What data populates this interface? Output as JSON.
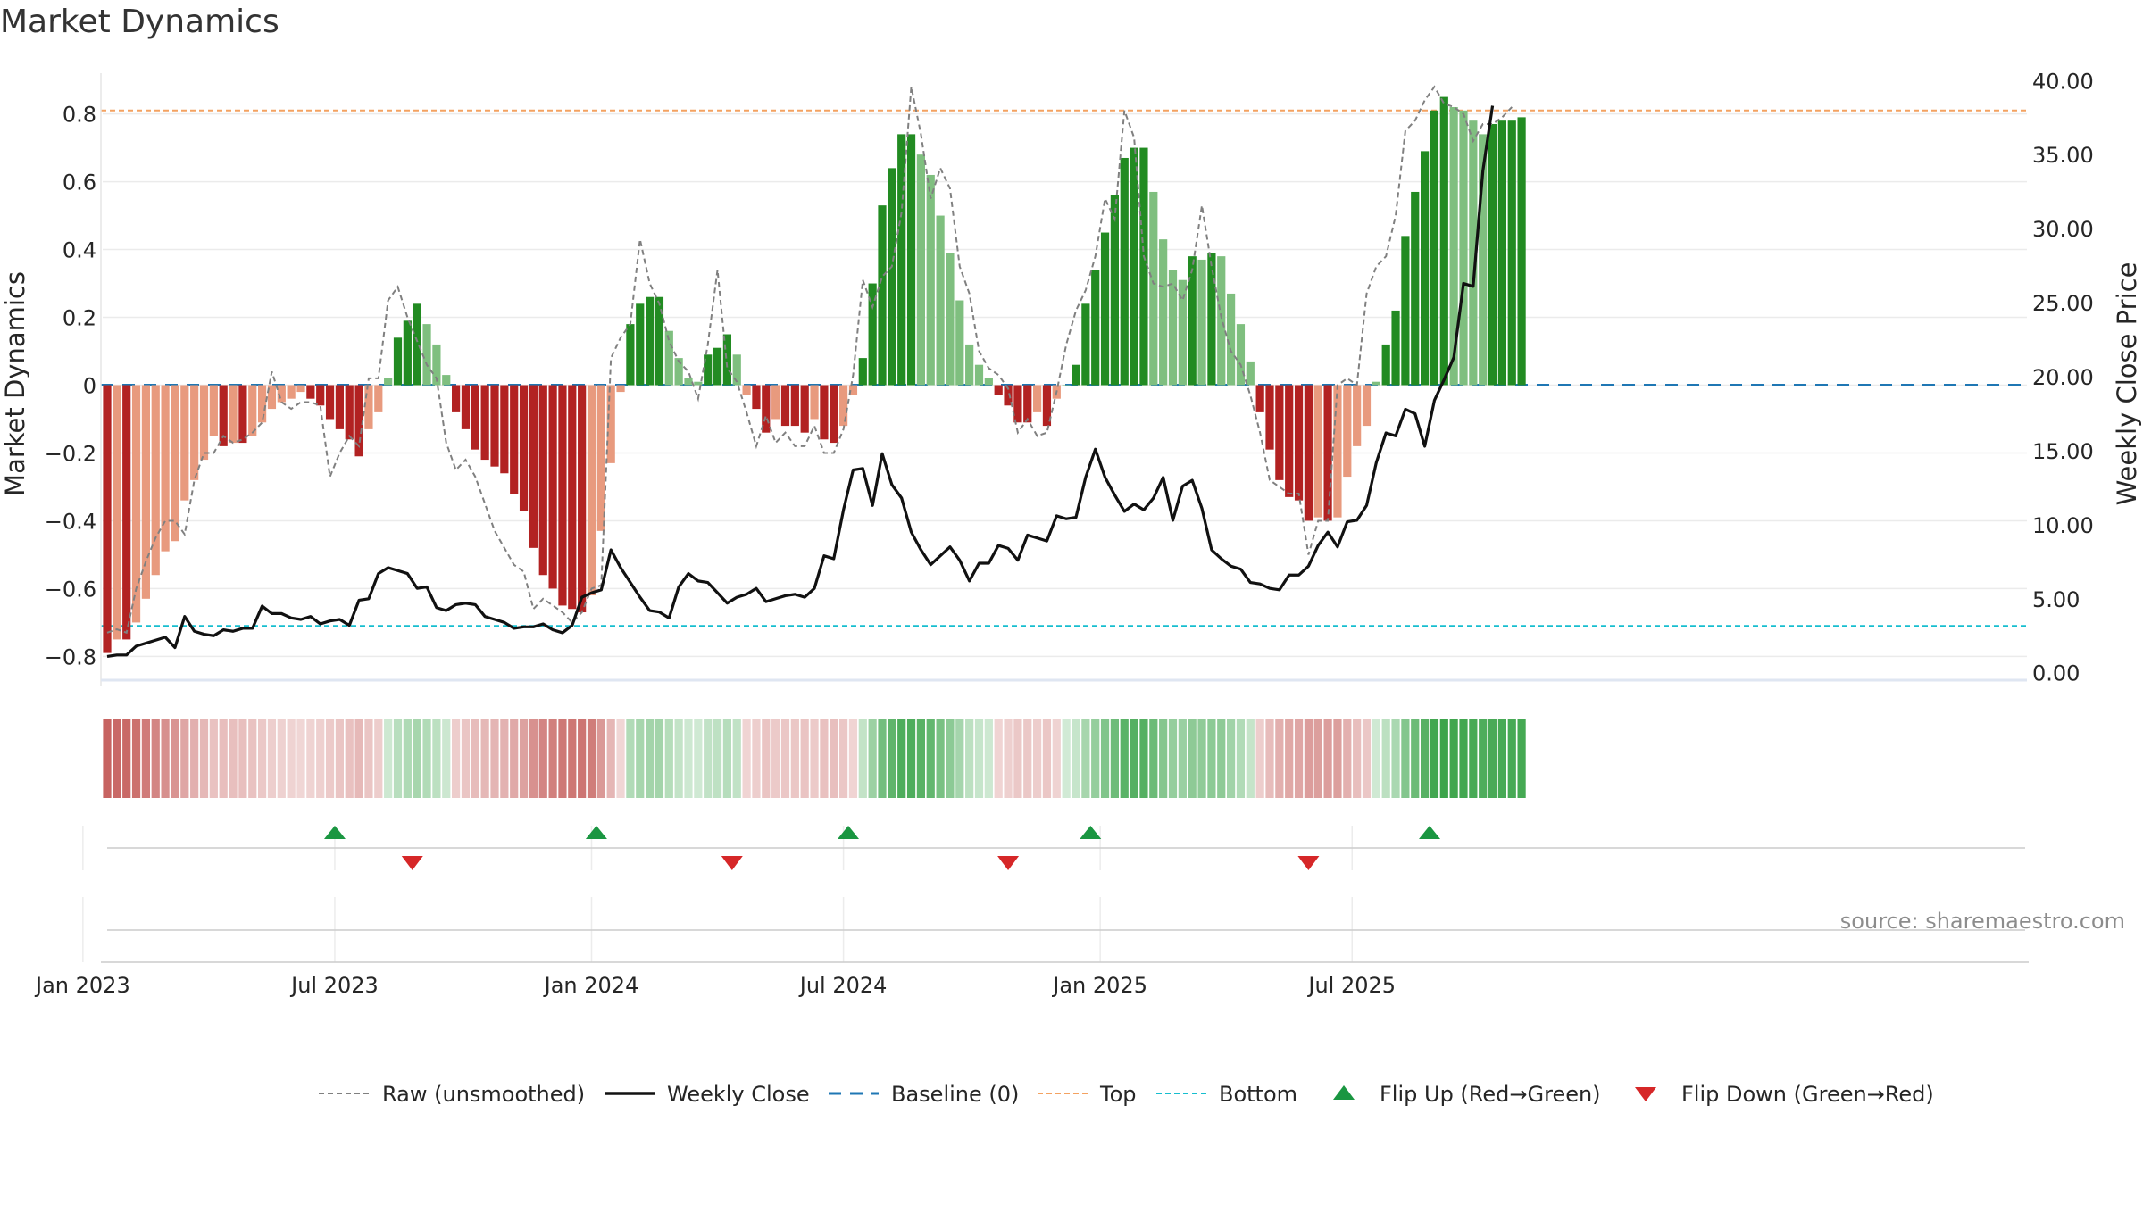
{
  "chart_data": {
    "type": "bar",
    "title": "Market Dynamics",
    "ylabel_left": "Market Dynamics",
    "ylabel_right": "Weekly Close Price",
    "ylim_left": [
      -0.87,
      0.92
    ],
    "ylim_right": [
      -0.5,
      40.5
    ],
    "yticks_left": [
      "0.8",
      "0.6",
      "0.4",
      "0.2",
      "0",
      "−0.2",
      "−0.4",
      "−0.6",
      "−0.8"
    ],
    "yticks_left_values": [
      0.8,
      0.6,
      0.4,
      0.2,
      0,
      -0.2,
      -0.4,
      -0.6,
      -0.8
    ],
    "yticks_right": [
      "40.00",
      "35.00",
      "30.00",
      "25.00",
      "20.00",
      "15.00",
      "10.00",
      "5.00",
      "0.00"
    ],
    "yticks_right_values": [
      40,
      35,
      30,
      25,
      20,
      15,
      10,
      5,
      0
    ],
    "xticks": [
      "Jan 2023",
      "Jul 2023",
      "Jan 2024",
      "Jul 2024",
      "Jan 2025",
      "Jul 2025"
    ],
    "xticks_week_index": [
      -2.5,
      23.5,
      50,
      76,
      102.5,
      128.5
    ],
    "top_level": 0.81,
    "bottom_level": -0.71,
    "baseline": 0,
    "dynamics": [
      -0.79,
      -0.75,
      -0.75,
      -0.7,
      -0.63,
      -0.56,
      -0.49,
      -0.46,
      -0.34,
      -0.28,
      -0.22,
      -0.15,
      -0.18,
      -0.17,
      -0.17,
      -0.15,
      -0.11,
      -0.07,
      -0.05,
      -0.04,
      -0.02,
      -0.04,
      -0.06,
      -0.1,
      -0.13,
      -0.16,
      -0.21,
      -0.13,
      -0.08,
      0.02,
      0.14,
      0.19,
      0.24,
      0.18,
      0.12,
      0.03,
      -0.08,
      -0.13,
      -0.19,
      -0.22,
      -0.24,
      -0.26,
      -0.32,
      -0.37,
      -0.48,
      -0.56,
      -0.6,
      -0.65,
      -0.66,
      -0.67,
      -0.62,
      -0.43,
      -0.23,
      -0.02,
      0.18,
      0.24,
      0.26,
      0.26,
      0.16,
      0.08,
      0.02,
      0.01,
      0.09,
      0.11,
      0.15,
      0.09,
      -0.03,
      -0.07,
      -0.14,
      -0.1,
      -0.12,
      -0.12,
      -0.14,
      -0.1,
      -0.16,
      -0.17,
      -0.12,
      -0.03,
      0.08,
      0.3,
      0.53,
      0.64,
      0.74,
      0.74,
      0.68,
      0.62,
      0.5,
      0.39,
      0.25,
      0.12,
      0.06,
      0.02,
      -0.03,
      -0.06,
      -0.11,
      -0.11,
      -0.08,
      -0.12,
      -0.04,
      0.0,
      0.06,
      0.24,
      0.34,
      0.45,
      0.56,
      0.67,
      0.7,
      0.7,
      0.57,
      0.43,
      0.34,
      0.31,
      0.38,
      0.37,
      0.39,
      0.38,
      0.27,
      0.18,
      0.07,
      -0.08,
      -0.19,
      -0.28,
      -0.33,
      -0.34,
      -0.4,
      -0.39,
      -0.4,
      -0.39,
      -0.27,
      -0.18,
      -0.12,
      0.01,
      0.12,
      0.22,
      0.44,
      0.57,
      0.69,
      0.81,
      0.85,
      0.82,
      0.81,
      0.78,
      0.74,
      0.77,
      0.78,
      0.78,
      0.79
    ],
    "raw": [
      -0.73,
      -0.72,
      -0.73,
      -0.6,
      -0.52,
      -0.45,
      -0.4,
      -0.4,
      -0.44,
      -0.28,
      -0.2,
      -0.2,
      -0.15,
      -0.17,
      -0.16,
      -0.14,
      -0.11,
      0.04,
      -0.05,
      -0.07,
      -0.05,
      -0.05,
      -0.06,
      -0.27,
      -0.2,
      -0.15,
      -0.18,
      0.02,
      0.02,
      0.25,
      0.29,
      0.2,
      0.13,
      0.06,
      0.02,
      -0.17,
      -0.25,
      -0.22,
      -0.27,
      -0.35,
      -0.43,
      -0.48,
      -0.53,
      -0.55,
      -0.66,
      -0.63,
      -0.65,
      -0.67,
      -0.7,
      -0.67,
      -0.6,
      -0.59,
      0.08,
      0.14,
      0.18,
      0.43,
      0.3,
      0.24,
      0.13,
      0.07,
      0.04,
      -0.04,
      0.12,
      0.34,
      0.05,
      0.01,
      -0.08,
      -0.18,
      -0.09,
      -0.17,
      -0.14,
      -0.18,
      -0.18,
      -0.12,
      -0.2,
      -0.2,
      -0.13,
      0.03,
      0.31,
      0.23,
      0.32,
      0.35,
      0.51,
      0.88,
      0.74,
      0.55,
      0.64,
      0.58,
      0.35,
      0.27,
      0.1,
      0.05,
      0.03,
      -0.01,
      -0.14,
      -0.1,
      -0.15,
      -0.14,
      -0.02,
      0.12,
      0.22,
      0.28,
      0.38,
      0.55,
      0.49,
      0.81,
      0.73,
      0.38,
      0.3,
      0.29,
      0.3,
      0.25,
      0.34,
      0.53,
      0.35,
      0.2,
      0.1,
      0.06,
      -0.03,
      -0.14,
      -0.28,
      -0.3,
      -0.32,
      -0.32,
      -0.5,
      -0.4,
      -0.4,
      0.0,
      0.02,
      0.0,
      0.27,
      0.35,
      0.38,
      0.5,
      0.75,
      0.78,
      0.84,
      0.88,
      0.83,
      0.82,
      0.8,
      0.72,
      0.77,
      0.77,
      0.79,
      0.82
    ],
    "close": [
      1.1,
      1.2,
      1.2,
      1.8,
      2.0,
      2.2,
      2.4,
      1.7,
      3.8,
      2.8,
      2.6,
      2.5,
      2.9,
      2.8,
      3.0,
      3.0,
      4.5,
      4.0,
      4.0,
      3.7,
      3.6,
      3.8,
      3.3,
      3.5,
      3.6,
      3.2,
      4.9,
      5.0,
      6.7,
      7.1,
      6.9,
      6.7,
      5.7,
      5.8,
      4.4,
      4.2,
      4.6,
      4.7,
      4.6,
      3.8,
      3.6,
      3.4,
      3.0,
      3.1,
      3.1,
      3.3,
      2.9,
      2.7,
      3.2,
      5.1,
      5.4,
      5.6,
      8.3,
      7.1,
      6.1,
      5.1,
      4.2,
      4.1,
      3.7,
      5.8,
      6.7,
      6.2,
      6.1,
      5.4,
      4.7,
      5.1,
      5.3,
      5.7,
      4.8,
      5.0,
      5.2,
      5.3,
      5.1,
      5.7,
      7.9,
      7.7,
      11.0,
      13.7,
      13.8,
      11.3,
      14.8,
      12.7,
      11.8,
      9.5,
      8.3,
      7.3,
      7.9,
      8.5,
      7.6,
      6.2,
      7.4,
      7.4,
      8.6,
      8.4,
      7.6,
      9.3,
      9.1,
      8.9,
      10.6,
      10.4,
      10.5,
      13.2,
      15.1,
      13.2,
      12.0,
      10.9,
      11.4,
      11.0,
      11.8,
      13.2,
      10.3,
      12.6,
      13.0,
      11.1,
      8.3,
      7.7,
      7.2,
      7.0,
      6.1,
      6.0,
      5.7,
      5.6,
      6.6,
      6.6,
      7.2,
      8.6,
      9.5,
      8.5,
      10.2,
      10.3,
      11.3,
      14.2,
      16.2,
      16.0,
      17.8,
      17.5,
      15.3,
      18.4,
      19.8,
      21.3,
      26.3,
      26.1,
      33.9,
      38.3
    ],
    "flip_up_week_index": [
      23.5,
      50.5,
      76.5,
      101.5,
      136.5
    ],
    "flip_down_week_index": [
      31.5,
      64.5,
      93,
      124
    ],
    "legend": [
      "Raw (unsmoothed)",
      "Weekly Close",
      "Baseline (0)",
      "Top",
      "Bottom",
      "Flip Up (Red→Green)",
      "Flip Down (Green→Red)"
    ],
    "colors": {
      "bull_strong": "#228b22",
      "bull_weak": "#7fbf7f",
      "bear_strong": "#b22222",
      "bear_weak": "#e89a7e",
      "raw": "#808080",
      "close": "#111111",
      "baseline": "#1f77b4",
      "top": "#f4a261",
      "bottom": "#17becf",
      "flip_up": "#1a9641",
      "flip_down": "#d62728",
      "grid": "#ebebeb",
      "source": "#8c8c8c"
    }
  },
  "source_note": "source: sharemaestro.com"
}
